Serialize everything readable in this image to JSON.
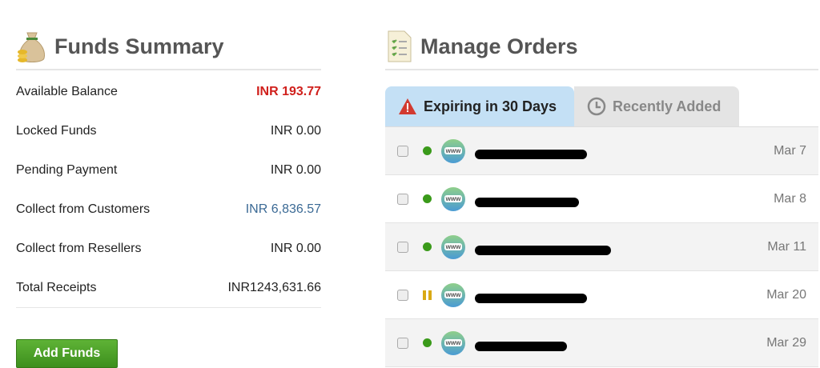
{
  "funds": {
    "title": "Funds Summary",
    "rows": [
      {
        "label": "Available Balance",
        "value": "INR 193.77",
        "color": "#d0201c"
      },
      {
        "label": "Locked Funds",
        "value": "INR 0.00",
        "color": "#222222"
      },
      {
        "label": "Pending Payment",
        "value": "INR 0.00",
        "color": "#222222"
      },
      {
        "label": "Collect from Customers",
        "value": "INR 6,836.57",
        "color": "#3b6a95"
      },
      {
        "label": "Collect from Resellers",
        "value": "INR 0.00",
        "color": "#222222"
      },
      {
        "label": "Total Receipts",
        "value": "INR1243,631.66",
        "color": "#222222"
      }
    ],
    "add_label": "Add Funds"
  },
  "orders": {
    "title": "Manage Orders",
    "tabs": [
      {
        "label": "Expiring in 30 Days",
        "icon": "warning-icon"
      },
      {
        "label": "Recently Added",
        "icon": "clock-icon"
      }
    ],
    "rows": [
      {
        "status": "active",
        "date": "Mar 7"
      },
      {
        "status": "active",
        "date": "Mar 8"
      },
      {
        "status": "active",
        "date": "Mar 11"
      },
      {
        "status": "paused",
        "date": "Mar 20"
      },
      {
        "status": "active",
        "date": "Mar 29"
      }
    ]
  }
}
